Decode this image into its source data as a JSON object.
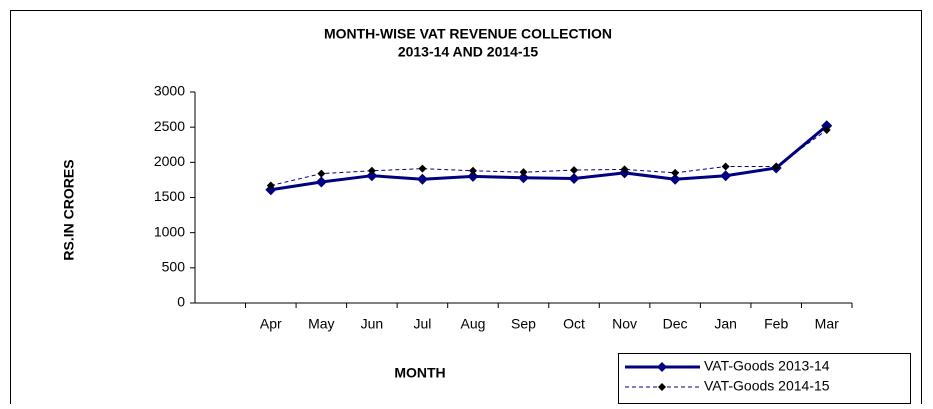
{
  "chart_data": {
    "type": "line",
    "title": [
      "MONTH-WISE VAT REVENUE COLLECTION",
      "2013-14 AND 2014-15"
    ],
    "x_label": "MONTH",
    "y_label": "RS.IN CRORES",
    "categories": [
      null,
      "Apr",
      "May",
      "Jun",
      "Jul",
      "Aug",
      "Sep",
      "Oct",
      "Nov",
      "Dec",
      "Jan",
      "Feb",
      "Mar"
    ],
    "series": [
      {
        "name": "VAT-Goods 2013-14",
        "color": "#000080",
        "line_style": "solid",
        "values": [
          null,
          1610,
          1720,
          1810,
          1760,
          1800,
          1780,
          1770,
          1850,
          1760,
          1810,
          1920,
          2520
        ]
      },
      {
        "name": "VAT-Goods 2014-15",
        "color": "#000080",
        "line_style": "dashed",
        "values": [
          null,
          1670,
          1840,
          1880,
          1910,
          1880,
          1860,
          1890,
          1900,
          1850,
          1940,
          1940,
          2460
        ]
      }
    ],
    "ylim": [
      0,
      3000
    ],
    "yticks": [
      0,
      500,
      1000,
      1500,
      2000,
      2500,
      3000
    ],
    "grid": false,
    "legend": "bottom-right"
  }
}
